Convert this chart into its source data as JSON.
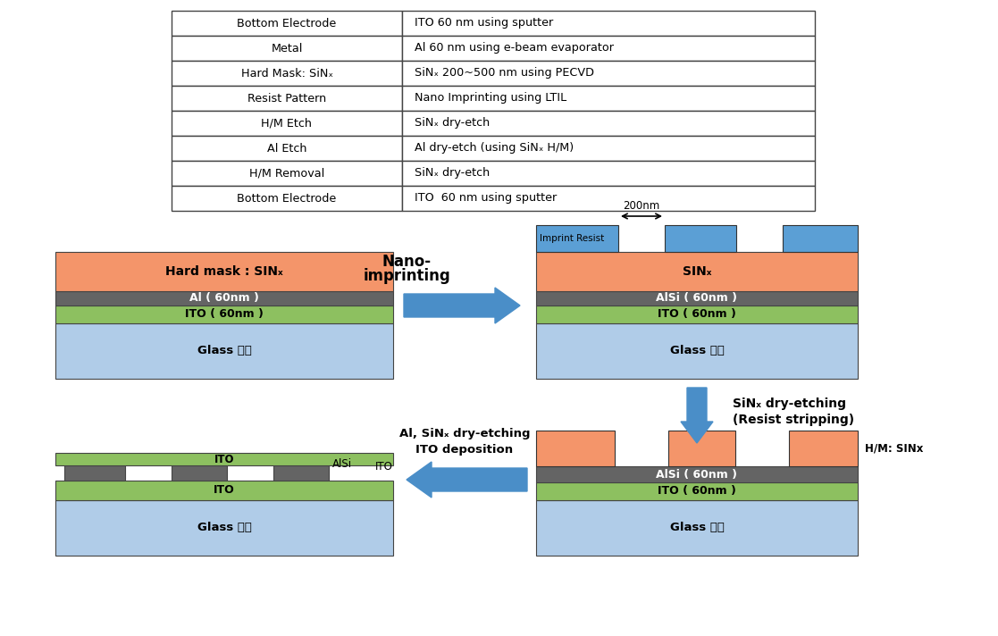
{
  "table_rows": [
    [
      "Bottom Electrode",
      "ITO 60 nm using sputter"
    ],
    [
      "Metal",
      "Al 60 nm using e-beam evaporator"
    ],
    [
      "Hard Mask: SiNₓ",
      "SiNₓ 200~500 nm using PECVD"
    ],
    [
      "Resist Pattern",
      "Nano Imprinting using LTIL"
    ],
    [
      "H/M Etch",
      "SiNₓ dry-etch"
    ],
    [
      "Al Etch",
      "Al dry-etch (using SiNₓ H/M)"
    ],
    [
      "H/M Removal",
      "SiNₓ dry-etch"
    ],
    [
      "Bottom Electrode",
      "ITO  60 nm using sputter"
    ]
  ],
  "colors": {
    "salmon": "#F4956A",
    "green": "#8DC060",
    "glass_blue": "#B0CCE8",
    "resist_blue": "#5B9FD5",
    "dark_gray": "#646464",
    "arrow_blue": "#4A8EC8"
  }
}
